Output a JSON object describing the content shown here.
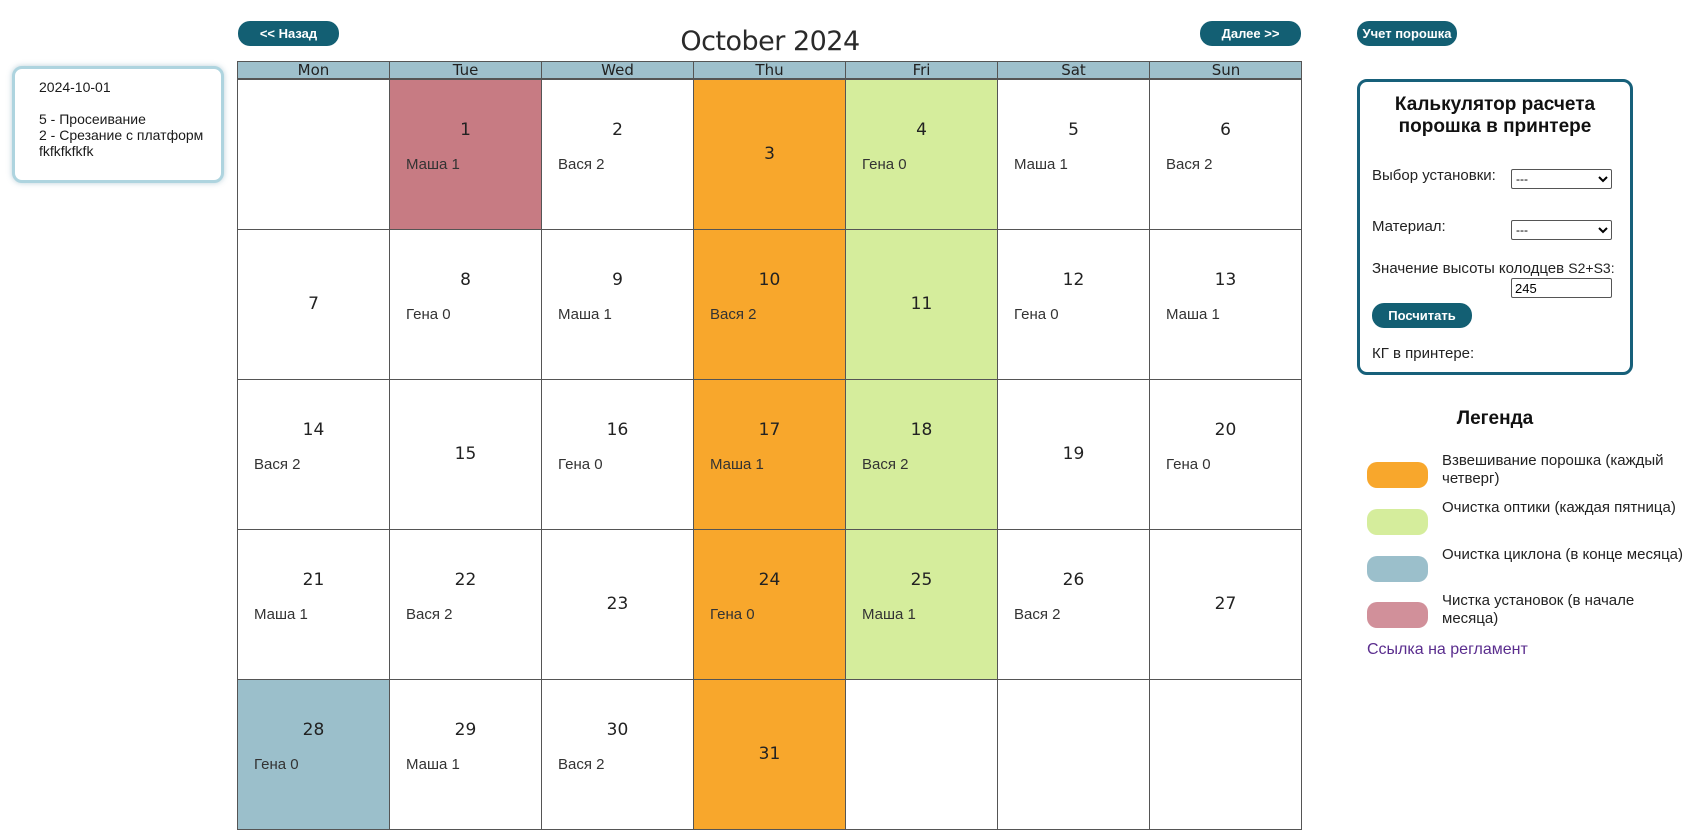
{
  "info_card": {
    "date": "2024-10-01",
    "lines": [
      "5 - Просеивание",
      "2 - Срезание с платформ",
      "fkfkfkfkfk"
    ]
  },
  "nav": {
    "prev_label": "<< Назад",
    "next_label": "Далее >>",
    "powder_label": "Учет порошка"
  },
  "calendar": {
    "title": "October 2024",
    "weekdays": [
      "Mon",
      "Tue",
      "Wed",
      "Thu",
      "Fri",
      "Sat",
      "Sun"
    ],
    "cells": [
      {
        "day": "",
        "who": "",
        "type": ""
      },
      {
        "day": "1",
        "who": "Маша 1",
        "type": "clean"
      },
      {
        "day": "2",
        "who": "Вася 2",
        "type": ""
      },
      {
        "day": "3",
        "who": "",
        "type": "weigh"
      },
      {
        "day": "4",
        "who": "Гена 0",
        "type": "optic"
      },
      {
        "day": "5",
        "who": "Маша 1",
        "type": ""
      },
      {
        "day": "6",
        "who": "Вася 2",
        "type": ""
      },
      {
        "day": "7",
        "who": "",
        "type": ""
      },
      {
        "day": "8",
        "who": "Гена 0",
        "type": ""
      },
      {
        "day": "9",
        "who": "Маша 1",
        "type": ""
      },
      {
        "day": "10",
        "who": "Вася 2",
        "type": "weigh"
      },
      {
        "day": "11",
        "who": "",
        "type": "optic"
      },
      {
        "day": "12",
        "who": "Гена 0",
        "type": ""
      },
      {
        "day": "13",
        "who": "Маша 1",
        "type": ""
      },
      {
        "day": "14",
        "who": "Вася 2",
        "type": ""
      },
      {
        "day": "15",
        "who": "",
        "type": ""
      },
      {
        "day": "16",
        "who": "Гена 0",
        "type": ""
      },
      {
        "day": "17",
        "who": "Маша 1",
        "type": "weigh"
      },
      {
        "day": "18",
        "who": "Вася 2",
        "type": "optic"
      },
      {
        "day": "19",
        "who": "",
        "type": ""
      },
      {
        "day": "20",
        "who": "Гена 0",
        "type": ""
      },
      {
        "day": "21",
        "who": "Маша 1",
        "type": ""
      },
      {
        "day": "22",
        "who": "Вася 2",
        "type": ""
      },
      {
        "day": "23",
        "who": "",
        "type": ""
      },
      {
        "day": "24",
        "who": "Гена 0",
        "type": "weigh"
      },
      {
        "day": "25",
        "who": "Маша 1",
        "type": "optic"
      },
      {
        "day": "26",
        "who": "Вася 2",
        "type": ""
      },
      {
        "day": "27",
        "who": "",
        "type": ""
      },
      {
        "day": "28",
        "who": "Гена 0",
        "type": "cyclone"
      },
      {
        "day": "29",
        "who": "Маша 1",
        "type": ""
      },
      {
        "day": "30",
        "who": "Вася 2",
        "type": ""
      },
      {
        "day": "31",
        "who": "",
        "type": "weigh"
      },
      {
        "day": "",
        "who": "",
        "type": ""
      },
      {
        "day": "",
        "who": "",
        "type": ""
      },
      {
        "day": "",
        "who": "",
        "type": ""
      }
    ]
  },
  "calculator": {
    "title_line1": "Калькулятор расчета",
    "title_line2": "порошка в принтере",
    "installation_label": "Выбор установки:",
    "installation_value": "---",
    "material_label": "Материал:",
    "material_value": "---",
    "height_label": "Значение высоты колодцев",
    "height_suffix": "S2+S3:",
    "height_value": "245",
    "count_button": "Посчитать",
    "result_label": "КГ в принтере:"
  },
  "legend": {
    "title": "Легенда",
    "items": [
      {
        "label": "Взвешивание порошка (каждый четверг)",
        "color": "#f8a72c"
      },
      {
        "label": "Очистка оптики (каждая пятница)",
        "color": "#d5ed9c"
      },
      {
        "label": "Очистка циклона (в конце месяца)",
        "color": "#9bbfcb"
      },
      {
        "label": "Чистка установок (в начале месяца)",
        "color": "#d1909a"
      }
    ],
    "link_label": "Ссылка на регламент"
  }
}
